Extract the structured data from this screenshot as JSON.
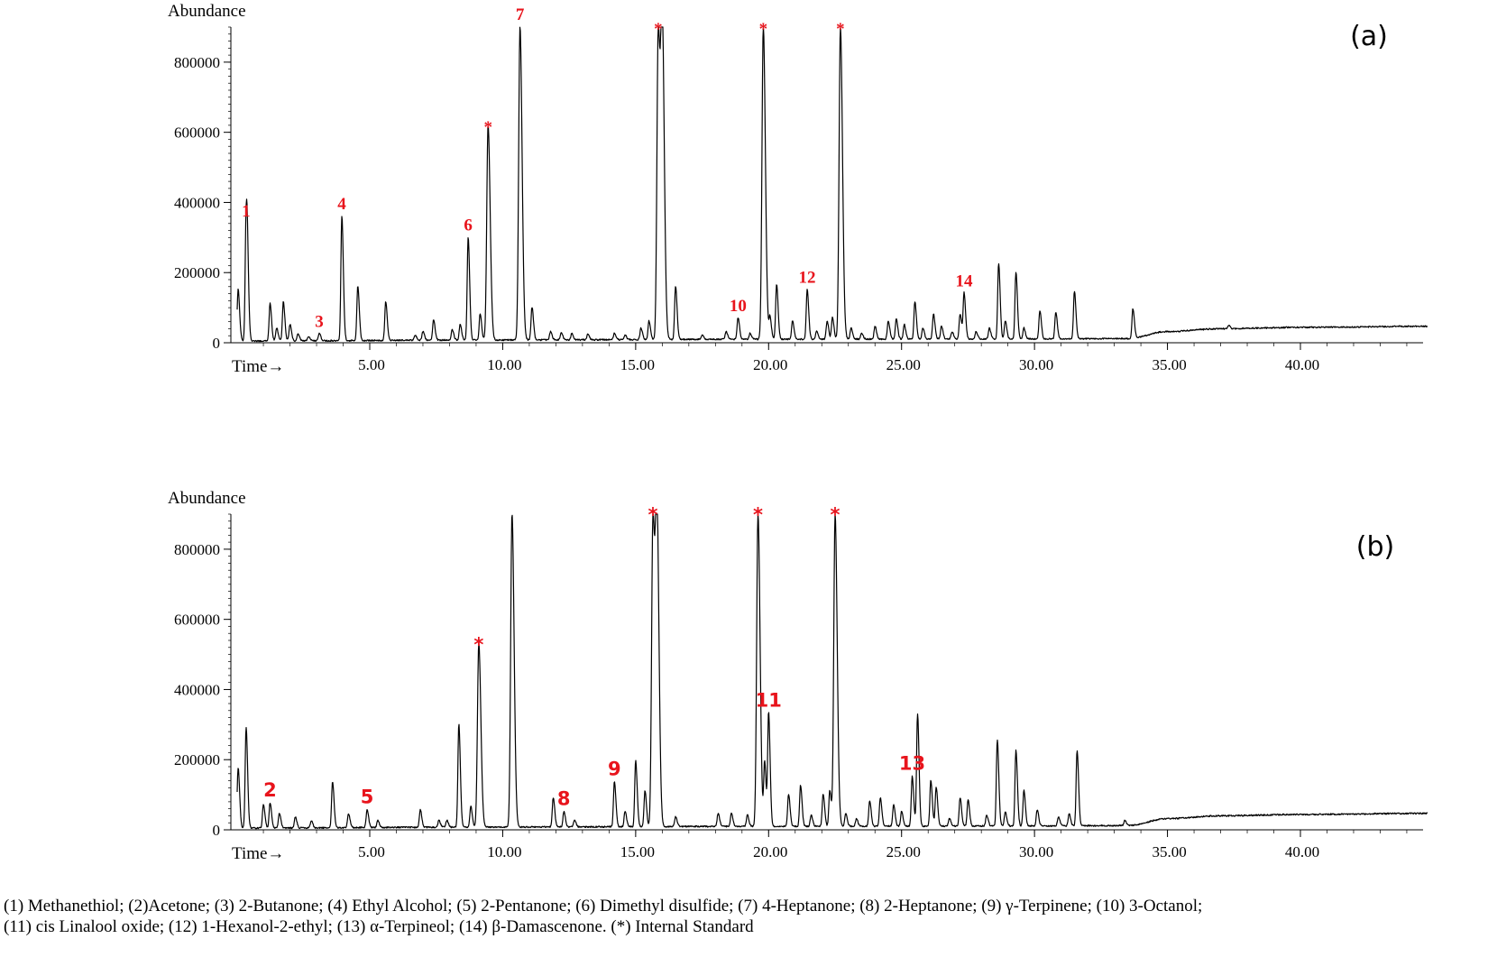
{
  "chart_data": [
    {
      "type": "line",
      "panel_label": "(a)",
      "ylabel": "Abundance",
      "xlabel": "Time→",
      "xlim": [
        0.0,
        44.8
      ],
      "ylim": [
        0,
        900000
      ],
      "x_ticks": [
        "5.00",
        "10.00",
        "15.00",
        "20.00",
        "25.00",
        "30.00",
        "35.00",
        "40.00"
      ],
      "y_ticks": [
        "0",
        "200000",
        "400000",
        "600000",
        "800000"
      ],
      "baseline": [
        [
          0.0,
          3000
        ],
        [
          10.0,
          6000
        ],
        [
          20.0,
          8000
        ],
        [
          30.0,
          9000
        ],
        [
          33.5,
          10000
        ],
        [
          35.0,
          30000
        ],
        [
          37.0,
          38000
        ],
        [
          40.0,
          42000
        ],
        [
          44.8,
          45000
        ]
      ],
      "peaks": [
        {
          "x": 0.05,
          "y": 150000
        },
        {
          "x": 0.35,
          "y": 340000,
          "label": "1"
        },
        {
          "x": 0.4,
          "y": 130000
        },
        {
          "x": 1.25,
          "y": 110000
        },
        {
          "x": 1.5,
          "y": 40000
        },
        {
          "x": 1.75,
          "y": 115000
        },
        {
          "x": 2.0,
          "y": 50000
        },
        {
          "x": 2.3,
          "y": 25000
        },
        {
          "x": 2.7,
          "y": 15000
        },
        {
          "x": 3.1,
          "y": 25000,
          "label": "3"
        },
        {
          "x": 3.95,
          "y": 360000,
          "label": "4"
        },
        {
          "x": 4.55,
          "y": 160000
        },
        {
          "x": 5.6,
          "y": 115000
        },
        {
          "x": 6.7,
          "y": 20000
        },
        {
          "x": 7.0,
          "y": 30000
        },
        {
          "x": 7.4,
          "y": 65000
        },
        {
          "x": 8.1,
          "y": 35000
        },
        {
          "x": 8.4,
          "y": 50000
        },
        {
          "x": 8.7,
          "y": 300000,
          "label": "6"
        },
        {
          "x": 9.15,
          "y": 80000
        },
        {
          "x": 9.45,
          "y": 620000,
          "label": "*"
        },
        {
          "x": 10.65,
          "y": 900000,
          "label": "7"
        },
        {
          "x": 11.1,
          "y": 100000
        },
        {
          "x": 11.8,
          "y": 30000
        },
        {
          "x": 12.2,
          "y": 28000
        },
        {
          "x": 12.6,
          "y": 25000
        },
        {
          "x": 13.2,
          "y": 22000
        },
        {
          "x": 14.2,
          "y": 25000
        },
        {
          "x": 14.6,
          "y": 20000
        },
        {
          "x": 15.2,
          "y": 40000
        },
        {
          "x": 15.5,
          "y": 60000
        },
        {
          "x": 15.85,
          "y": 900000,
          "label": "*"
        },
        {
          "x": 16.0,
          "y": 880000
        },
        {
          "x": 16.5,
          "y": 160000
        },
        {
          "x": 17.5,
          "y": 20000
        },
        {
          "x": 18.4,
          "y": 30000
        },
        {
          "x": 18.85,
          "y": 70000,
          "label": "10"
        },
        {
          "x": 19.3,
          "y": 25000
        },
        {
          "x": 19.8,
          "y": 900000,
          "label": "*"
        },
        {
          "x": 20.05,
          "y": 70000
        },
        {
          "x": 20.3,
          "y": 165000
        },
        {
          "x": 20.9,
          "y": 60000
        },
        {
          "x": 21.45,
          "y": 150000,
          "label": "12"
        },
        {
          "x": 21.8,
          "y": 30000
        },
        {
          "x": 22.2,
          "y": 60000
        },
        {
          "x": 22.4,
          "y": 70000
        },
        {
          "x": 22.7,
          "y": 900000,
          "label": "*"
        },
        {
          "x": 23.1,
          "y": 40000
        },
        {
          "x": 23.5,
          "y": 25000
        },
        {
          "x": 24.0,
          "y": 45000
        },
        {
          "x": 24.5,
          "y": 60000
        },
        {
          "x": 24.8,
          "y": 65000
        },
        {
          "x": 25.1,
          "y": 50000
        },
        {
          "x": 25.5,
          "y": 115000
        },
        {
          "x": 25.8,
          "y": 40000
        },
        {
          "x": 26.2,
          "y": 80000
        },
        {
          "x": 26.5,
          "y": 45000
        },
        {
          "x": 26.9,
          "y": 30000
        },
        {
          "x": 27.2,
          "y": 80000
        },
        {
          "x": 27.35,
          "y": 140000,
          "label": "14"
        },
        {
          "x": 27.8,
          "y": 30000
        },
        {
          "x": 28.3,
          "y": 40000
        },
        {
          "x": 28.65,
          "y": 225000
        },
        {
          "x": 28.9,
          "y": 60000
        },
        {
          "x": 29.3,
          "y": 200000
        },
        {
          "x": 29.6,
          "y": 40000
        },
        {
          "x": 30.2,
          "y": 90000
        },
        {
          "x": 30.8,
          "y": 85000
        },
        {
          "x": 31.5,
          "y": 145000
        },
        {
          "x": 33.7,
          "y": 95000
        },
        {
          "x": 37.3,
          "y": 48000
        }
      ]
    },
    {
      "type": "line",
      "panel_label": "(b)",
      "ylabel": "Abundance",
      "xlabel": "Time→",
      "xlim": [
        0.0,
        44.8
      ],
      "ylim": [
        0,
        900000
      ],
      "x_ticks": [
        "5.00",
        "10.00",
        "15.00",
        "20.00",
        "25.00",
        "30.00",
        "35.00",
        "40.00"
      ],
      "y_ticks": [
        "0",
        "200000",
        "400000",
        "600000",
        "800000"
      ],
      "baseline": [
        [
          0.0,
          3000
        ],
        [
          10.0,
          6000
        ],
        [
          20.0,
          8000
        ],
        [
          30.0,
          9000
        ],
        [
          33.5,
          10000
        ],
        [
          35.0,
          30000
        ],
        [
          37.0,
          38000
        ],
        [
          40.0,
          42000
        ],
        [
          44.8,
          45000
        ]
      ],
      "peaks": [
        {
          "x": 0.05,
          "y": 175000
        },
        {
          "x": 0.35,
          "y": 290000
        },
        {
          "x": 1.0,
          "y": 70000
        },
        {
          "x": 1.25,
          "y": 75000,
          "label": "2"
        },
        {
          "x": 1.6,
          "y": 45000
        },
        {
          "x": 2.2,
          "y": 35000
        },
        {
          "x": 2.8,
          "y": 25000
        },
        {
          "x": 3.6,
          "y": 135000
        },
        {
          "x": 4.2,
          "y": 45000
        },
        {
          "x": 4.9,
          "y": 55000,
          "label": "5"
        },
        {
          "x": 5.3,
          "y": 25000
        },
        {
          "x": 6.9,
          "y": 55000
        },
        {
          "x": 7.6,
          "y": 25000
        },
        {
          "x": 7.9,
          "y": 25000
        },
        {
          "x": 8.35,
          "y": 300000
        },
        {
          "x": 8.8,
          "y": 65000
        },
        {
          "x": 9.1,
          "y": 530000,
          "label": "*"
        },
        {
          "x": 10.35,
          "y": 900000
        },
        {
          "x": 11.9,
          "y": 90000
        },
        {
          "x": 12.3,
          "y": 50000,
          "label": "8"
        },
        {
          "x": 12.7,
          "y": 25000
        },
        {
          "x": 14.2,
          "y": 135000,
          "label": "9"
        },
        {
          "x": 14.6,
          "y": 50000
        },
        {
          "x": 15.0,
          "y": 195000
        },
        {
          "x": 15.35,
          "y": 110000
        },
        {
          "x": 15.65,
          "y": 900000,
          "label": "*"
        },
        {
          "x": 15.8,
          "y": 880000
        },
        {
          "x": 16.5,
          "y": 35000
        },
        {
          "x": 18.1,
          "y": 45000
        },
        {
          "x": 18.6,
          "y": 45000
        },
        {
          "x": 19.2,
          "y": 40000
        },
        {
          "x": 19.6,
          "y": 900000,
          "label": "*"
        },
        {
          "x": 19.85,
          "y": 190000
        },
        {
          "x": 20.0,
          "y": 330000,
          "label": "11"
        },
        {
          "x": 20.75,
          "y": 100000
        },
        {
          "x": 21.2,
          "y": 125000
        },
        {
          "x": 21.6,
          "y": 40000
        },
        {
          "x": 22.05,
          "y": 100000
        },
        {
          "x": 22.3,
          "y": 110000
        },
        {
          "x": 22.5,
          "y": 900000,
          "label": "*"
        },
        {
          "x": 22.9,
          "y": 45000
        },
        {
          "x": 23.3,
          "y": 30000
        },
        {
          "x": 23.8,
          "y": 80000
        },
        {
          "x": 24.2,
          "y": 90000
        },
        {
          "x": 24.7,
          "y": 70000
        },
        {
          "x": 25.0,
          "y": 50000
        },
        {
          "x": 25.4,
          "y": 150000,
          "label": "13"
        },
        {
          "x": 25.6,
          "y": 330000
        },
        {
          "x": 26.1,
          "y": 140000
        },
        {
          "x": 26.3,
          "y": 120000
        },
        {
          "x": 26.8,
          "y": 30000
        },
        {
          "x": 27.2,
          "y": 90000
        },
        {
          "x": 27.5,
          "y": 85000
        },
        {
          "x": 28.2,
          "y": 40000
        },
        {
          "x": 28.6,
          "y": 255000
        },
        {
          "x": 28.9,
          "y": 50000
        },
        {
          "x": 29.3,
          "y": 225000
        },
        {
          "x": 29.6,
          "y": 110000
        },
        {
          "x": 30.1,
          "y": 55000
        },
        {
          "x": 30.9,
          "y": 35000
        },
        {
          "x": 31.3,
          "y": 45000
        },
        {
          "x": 31.6,
          "y": 225000
        },
        {
          "x": 33.4,
          "y": 25000
        }
      ]
    }
  ],
  "caption": {
    "line1": "(1) Methanethiol; (2)Acetone; (3) 2-Butanone; (4) Ethyl Alcohol; (5) 2-Pentanone; (6) Dimethyl disulfide; (7) 4-Heptanone; (8) 2-Heptanone; (9) γ-Terpinene; (10) 3-Octanol;",
    "line2": "(11) cis Linalool oxide; (12) 1-Hexanol-2-ethyl; (13) α-Terpineol; (14) β-Damascenone. (*) Internal Standard"
  },
  "colors": {
    "trace": "#000000",
    "peak_label": "#e8141c"
  }
}
